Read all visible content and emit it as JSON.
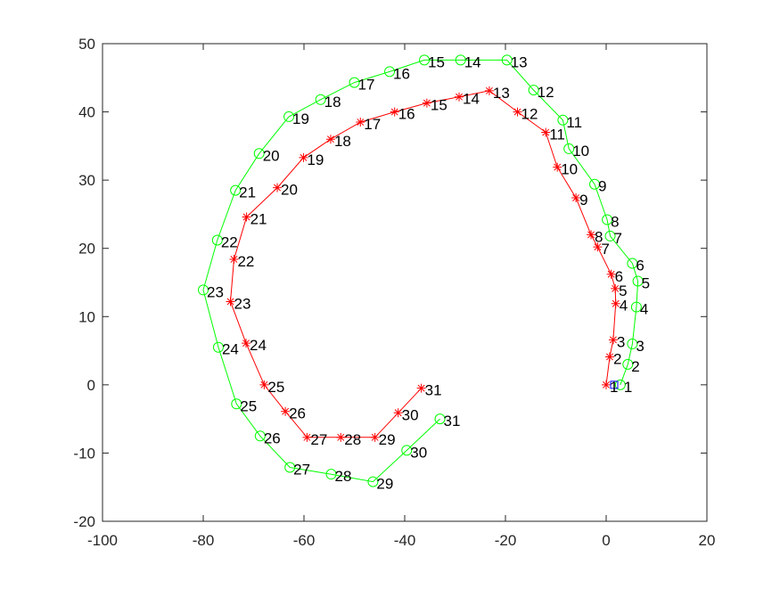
{
  "chart_data": {
    "type": "line",
    "title": "",
    "xlabel": "",
    "ylabel": "",
    "xlim": [
      -100,
      20
    ],
    "ylim": [
      -20,
      50
    ],
    "xticks": [
      -100,
      -80,
      -60,
      -40,
      -20,
      0,
      20
    ],
    "yticks": [
      -20,
      -10,
      0,
      10,
      20,
      30,
      40,
      50
    ],
    "grid": false,
    "series": [
      {
        "color": "#00ff00",
        "marker": "circle",
        "point_labels": [
          "1",
          "2",
          "3",
          "4",
          "5",
          "6",
          "7",
          "8",
          "9",
          "10",
          "11",
          "12",
          "13",
          "14",
          "15",
          "16",
          "17",
          "18",
          "19",
          "20",
          "21",
          "22",
          "23",
          "24",
          "25",
          "26",
          "27",
          "28",
          "29",
          "30",
          "31"
        ],
        "x": [
          2.8,
          4.3,
          5.2,
          6.0,
          6.3,
          5.2,
          0.8,
          0.2,
          -2.3,
          -7.4,
          -8.6,
          -14.4,
          -19.7,
          -28.9,
          -36.1,
          -43.0,
          -50.0,
          -56.7,
          -63.0,
          -68.9,
          -73.6,
          -77.2,
          -80.0,
          -77.0,
          -73.4,
          -68.7,
          -62.8,
          -54.6,
          -46.3,
          -39.6,
          -33.0
        ],
        "y": [
          0.0,
          3.0,
          6.0,
          11.4,
          15.2,
          17.8,
          21.8,
          24.2,
          29.4,
          34.6,
          38.8,
          43.2,
          47.6,
          47.6,
          47.6,
          45.9,
          44.3,
          41.8,
          39.3,
          33.9,
          28.5,
          21.2,
          13.9,
          5.5,
          -2.8,
          -7.5,
          -12.1,
          -13.1,
          -14.2,
          -9.6,
          -5.0
        ]
      },
      {
        "color": "#ff0000",
        "marker": "star",
        "point_labels": [
          "1",
          "2",
          "3",
          "4",
          "5",
          "6",
          "7",
          "8",
          "9",
          "10",
          "11",
          "12",
          "13",
          "14",
          "15",
          "16",
          "17",
          "18",
          "19",
          "20",
          "21",
          "22",
          "23",
          "24",
          "25",
          "26",
          "27",
          "28",
          "29",
          "30",
          "31"
        ],
        "x": [
          0.0,
          0.7,
          1.4,
          1.9,
          1.8,
          1.0,
          -1.7,
          -3.0,
          -6.0,
          -9.7,
          -12.0,
          -17.6,
          -23.2,
          -29.2,
          -35.6,
          -42.0,
          -48.8,
          -54.7,
          -60.1,
          -65.3,
          -71.4,
          -73.9,
          -74.6,
          -71.5,
          -67.9,
          -63.7,
          -59.4,
          -52.7,
          -45.9,
          -41.3,
          -36.7
        ],
        "y": [
          0.0,
          4.1,
          6.6,
          11.9,
          14.1,
          16.2,
          20.2,
          22.0,
          27.4,
          31.9,
          37.0,
          40.0,
          43.1,
          42.2,
          41.3,
          40.0,
          38.5,
          36.0,
          33.3,
          28.9,
          24.6,
          18.4,
          12.2,
          6.1,
          0.0,
          -3.9,
          -7.7,
          -7.7,
          -7.7,
          -4.1,
          -0.5
        ]
      }
    ]
  }
}
